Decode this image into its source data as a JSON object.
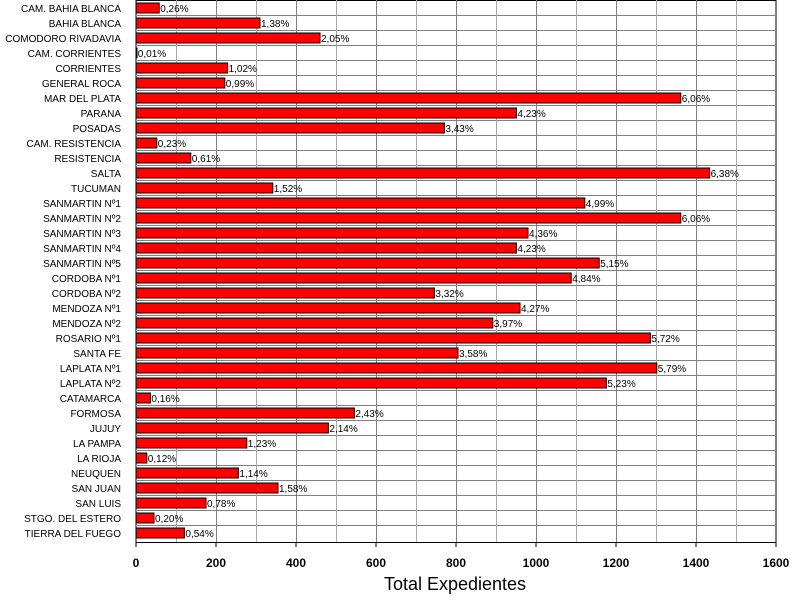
{
  "chart_data": {
    "type": "bar",
    "orientation": "horizontal",
    "xlabel": "Total Expedientes",
    "xlim": [
      0,
      1600
    ],
    "xticks": [
      0,
      200,
      400,
      600,
      800,
      1000,
      1200,
      1400,
      1600
    ],
    "grid": true,
    "legend": "none",
    "bar_color": "#ff0000",
    "categories": [
      "CAM. BAHIA BLANCA",
      "BAHIA BLANCA",
      "COMODORO RIVADAVIA",
      "CAM. CORRIENTES",
      "CORRIENTES",
      "GENERAL ROCA",
      "MAR DEL PLATA",
      "PARANA",
      "POSADAS",
      "CAM. RESISTENCIA",
      "RESISTENCIA",
      "SALTA",
      "TUCUMAN",
      "SANMARTIN Nº1",
      "SANMARTIN Nº2",
      "SANMARTIN Nº3",
      "SANMARTIN Nº4",
      "SANMARTIN Nº5",
      "CORDOBA Nº1",
      "CORDOBA Nº2",
      "MENDOZA Nº1",
      "MENDOZA Nº2",
      "ROSARIO Nº1",
      "SANTA FE",
      "LAPLATA Nº1",
      "LAPLATA Nº2",
      "CATAMARCA",
      "FORMOSA",
      "JUJUY",
      "LA PAMPA",
      "LA RIOJA",
      "NEUQUEN",
      "SAN JUAN",
      "SAN LUIS",
      "STGO. DEL ESTERO",
      "TIERRA DEL FUEGO"
    ],
    "values": [
      58,
      310,
      460,
      2,
      229,
      222,
      1362,
      951,
      771,
      52,
      137,
      1434,
      342,
      1122,
      1362,
      980,
      951,
      1158,
      1088,
      746,
      960,
      892,
      1286,
      805,
      1302,
      1176,
      36,
      546,
      481,
      277,
      27,
      256,
      355,
      175,
      45,
      121
    ],
    "data_labels": [
      "0,26%",
      "1,38%",
      "2,05%",
      "0,01%",
      "1,02%",
      "0,99%",
      "6,06%",
      "4,23%",
      "3,43%",
      "0,23%",
      "0,61%",
      "6,38%",
      "1,52%",
      "4,99%",
      "6,06%",
      "4,36%",
      "4,23%",
      "5,15%",
      "4,84%",
      "3,32%",
      "4,27%",
      "3,97%",
      "5,72%",
      "3,58%",
      "5,79%",
      "5,23%",
      "0,16%",
      "2,43%",
      "2,14%",
      "1,23%",
      "0,12%",
      "1,14%",
      "1,58%",
      "0,78%",
      "0,20%",
      "0,54%"
    ]
  }
}
